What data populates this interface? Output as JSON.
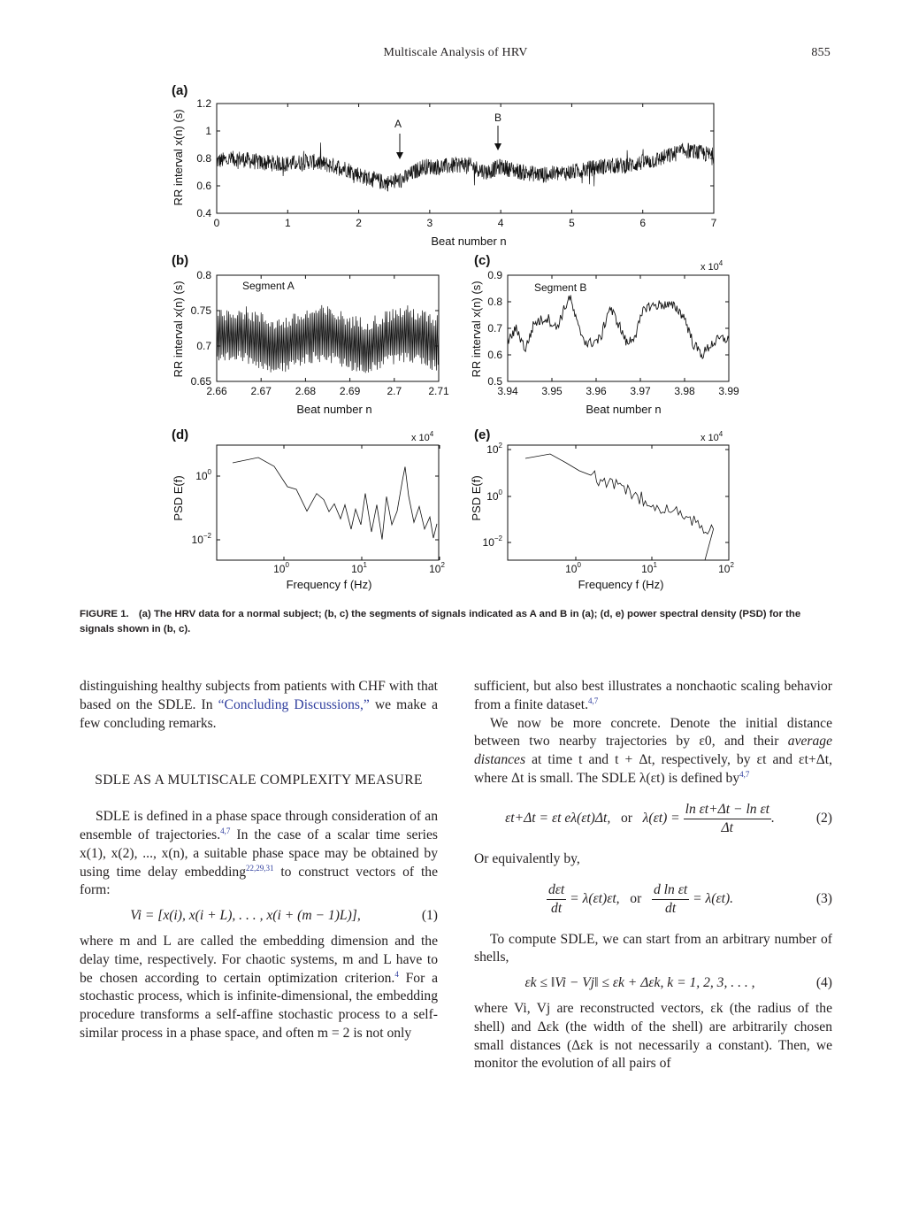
{
  "header": {
    "title": "Multiscale Analysis of HRV",
    "page_number": "855"
  },
  "figure": {
    "caption_label": "FIGURE 1.",
    "caption_text": "(a) The HRV data for a normal subject; (b, c) the segments of signals indicated as A and B in (a); (d, e) power spectral density (PSD) for the signals shown in (b, c).",
    "panels": {
      "a": {
        "label": "(a)",
        "ylabel": "RR interval x(n) (s)",
        "xlabel": "Beat number n",
        "xticks": [
          "0",
          "1",
          "2",
          "3",
          "4",
          "5",
          "6",
          "7"
        ],
        "yticks": [
          "0.4",
          "0.6",
          "0.8",
          "1",
          "1.2"
        ],
        "annotations": [
          "A",
          "B"
        ]
      },
      "b": {
        "label": "(b)",
        "ylabel": "RR interval x(n) (s)",
        "xlabel": "Beat number n",
        "xticks": [
          "2.66",
          "2.67",
          "2.68",
          "2.69",
          "2.7",
          "2.71"
        ],
        "yticks": [
          "0.65",
          "0.7",
          "0.75",
          "0.8"
        ],
        "inset_text": "Segment A"
      },
      "c": {
        "label": "(c)",
        "ylabel": "RR interval x(n) (s)",
        "xlabel": "Beat number n",
        "xticks": [
          "3.94",
          "3.95",
          "3.96",
          "3.97",
          "3.98",
          "3.99"
        ],
        "yticks": [
          "0.5",
          "0.6",
          "0.7",
          "0.8",
          "0.9"
        ],
        "inset_text": "Segment B",
        "x_multiplier": "x 10",
        "x_multiplier_exp": "4"
      },
      "d": {
        "label": "(d)",
        "ylabel": "PSD E(f)",
        "xlabel": "Frequency f (Hz)",
        "x_multiplier": "x 10",
        "x_multiplier_exp": "4"
      },
      "e": {
        "label": "(e)",
        "ylabel": "PSD E(f)",
        "xlabel": "Frequency f (Hz)",
        "x_multiplier": "x 10",
        "x_multiplier_exp": "4"
      }
    },
    "log_ticks": {
      "base": "10",
      "x_exponents": [
        "0",
        "1",
        "2"
      ],
      "d_y_exponents": [
        "0",
        "−2"
      ],
      "e_y_exponents": [
        "2",
        "0",
        "−2"
      ]
    }
  },
  "left_column": {
    "p1_a": "distinguishing healthy subjects from patients with CHF with that based on the SDLE. In ",
    "p1_link": "“Concluding Discussions,”",
    "p1_b": " we make a few concluding remarks.",
    "section_title": "SDLE AS A MULTISCALE COMPLEXITY MEASURE",
    "p2_a": "SDLE is defined in a phase space through consideration of an ensemble of trajectories.",
    "p2_ref1": "4,7",
    "p2_b": " In the case of a scalar time series x(1), x(2), ..., x(n), a suitable phase space may be obtained by using time delay embedding",
    "p2_ref2": "22,29,31",
    "p2_c": " to construct vectors of the form:",
    "eq1": "Vi = [x(i), x(i + L), . . . , x(i + (m − 1)L)],",
    "eq1_num": "(1)",
    "p3_a": "where m and L are called the embedding dimension and the delay time, respectively. For chaotic systems, m and L have to be chosen according to certain optimization criterion.",
    "p3_ref": "4",
    "p3_b": " For a stochastic process, which is infinite-dimensional, the embedding procedure transforms a self-affine stochastic process to a self-similar process in a phase space, and often m = 2 is not only"
  },
  "right_column": {
    "p1": "sufficient, but also best illustrates a nonchaotic scaling behavior from a finite dataset.",
    "p1_ref": "4,7",
    "p2_a": "We now be more concrete. Denote the initial distance between two nearby trajectories by ε0, and their ",
    "p2_em": "average distances",
    "p2_b": " at time t and t + Δt, respectively, by εt and εt+Δt, where Δt is small. The SDLE λ(εt) is defined by",
    "p2_ref": "4,7",
    "eq2_left": "εt+Δt = εt eλ(εt)Δt,",
    "eq2_or": "or",
    "eq2_lhs": "λ(εt) =",
    "eq2_num_top": "ln εt+Δt − ln εt",
    "eq2_den": "Δt",
    "eq2_num": "(2)",
    "p3": "Or equivalently by,",
    "eq3_a_top": "dεt",
    "eq3_a_den": "dt",
    "eq3_a_rhs": "= λ(εt)εt,",
    "eq3_or": "or",
    "eq3_b_top": "d ln εt",
    "eq3_b_den": "dt",
    "eq3_b_rhs": "= λ(εt).",
    "eq3_num": "(3)",
    "p4": "To compute SDLE, we can start from an arbitrary number of shells,",
    "eq4": "εk ≤ ‖Vi − Vj‖ ≤ εk + Δεk,   k = 1, 2, 3, . . . ,",
    "eq4_num": "(4)",
    "p5": "where Vi, Vj are reconstructed vectors, εk (the radius of the shell) and Δεk (the width of the shell) are arbitrarily chosen small distances (Δεk is not necessarily a constant). Then, we monitor the evolution of all pairs of"
  }
}
